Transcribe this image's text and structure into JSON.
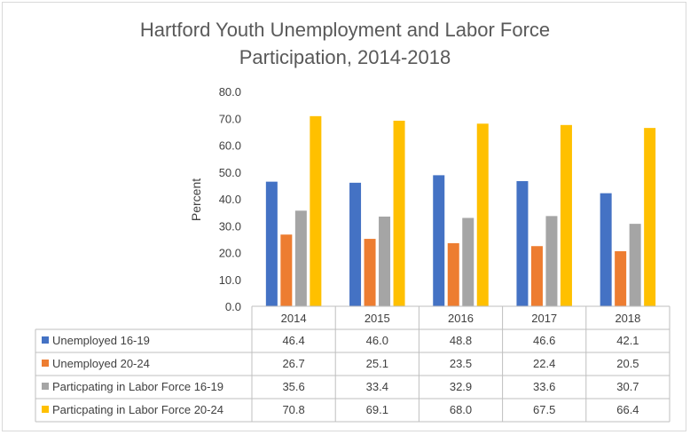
{
  "chart_data": {
    "type": "bar",
    "title_line1": "Hartford Youth Unemployment and Labor Force",
    "title_line2": "Participation, 2014-2018",
    "xlabel": "",
    "ylabel": "Percent",
    "ylim": [
      0,
      80
    ],
    "yticks": [
      "0.0",
      "10.0",
      "20.0",
      "30.0",
      "40.0",
      "50.0",
      "60.0",
      "70.0",
      "80.0"
    ],
    "grid": false,
    "legend": "data-table",
    "categories": [
      "2014",
      "2015",
      "2016",
      "2017",
      "2018"
    ],
    "series": [
      {
        "name": "Unemployed 16-19",
        "color": "#4472c4",
        "values": [
          46.4,
          46.0,
          48.8,
          46.6,
          42.1
        ],
        "labels": [
          "46.4",
          "46.0",
          "48.8",
          "46.6",
          "42.1"
        ]
      },
      {
        "name": "Unemployed 20-24",
        "color": "#ed7d31",
        "values": [
          26.7,
          25.1,
          23.5,
          22.4,
          20.5
        ],
        "labels": [
          "26.7",
          "25.1",
          "23.5",
          "22.4",
          "20.5"
        ]
      },
      {
        "name": "Particpating in Labor Force 16-19",
        "color": "#a5a5a5",
        "values": [
          35.6,
          33.4,
          32.9,
          33.6,
          30.7
        ],
        "labels": [
          "35.6",
          "33.4",
          "32.9",
          "33.6",
          "30.7"
        ]
      },
      {
        "name": "Particpating in Labor Force 20-24",
        "color": "#ffc000",
        "values": [
          70.8,
          69.1,
          68.0,
          67.5,
          66.4
        ],
        "labels": [
          "70.8",
          "69.1",
          "68.0",
          "67.5",
          "66.4"
        ]
      }
    ]
  }
}
